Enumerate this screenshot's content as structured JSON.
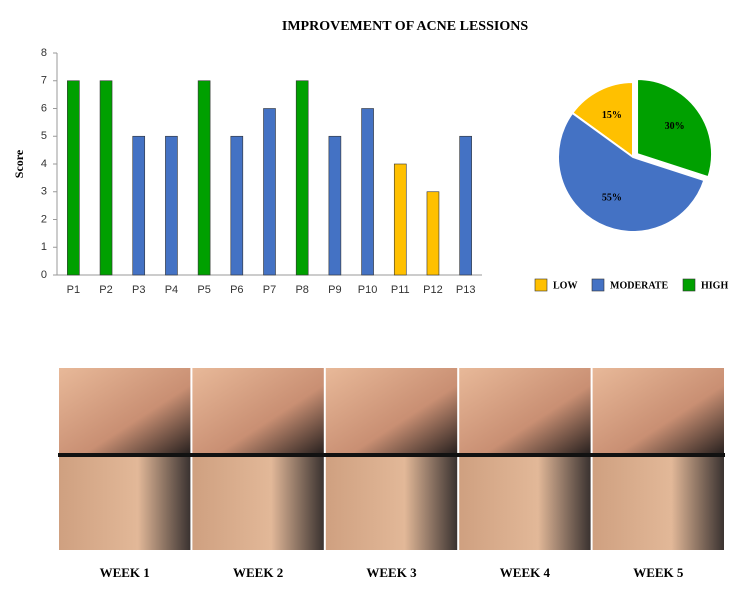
{
  "chart_data": [
    {
      "type": "bar",
      "title": "IMPROVEMENT OF ACNE LESSIONS",
      "y_label": "Score",
      "categories": [
        "P1",
        "P2",
        "P3",
        "P4",
        "P5",
        "P6",
        "P7",
        "P8",
        "P9",
        "P10",
        "P11",
        "P12",
        "P13"
      ],
      "series": [
        {
          "name": "LOW",
          "color": "#ffc000",
          "values": [
            null,
            null,
            null,
            null,
            null,
            null,
            null,
            null,
            null,
            null,
            4,
            3,
            null
          ]
        },
        {
          "name": "MODERATE",
          "color": "#4472c4",
          "values": [
            null,
            null,
            5,
            5,
            null,
            5,
            6,
            null,
            5,
            6,
            null,
            null,
            5
          ]
        },
        {
          "name": "HIGH",
          "color": "#00a000",
          "values": [
            7,
            7,
            null,
            null,
            7,
            null,
            null,
            7,
            null,
            null,
            null,
            null,
            null
          ]
        }
      ],
      "ylim": [
        0,
        8
      ],
      "yticks": [
        0,
        1,
        2,
        3,
        4,
        5,
        6,
        7,
        8
      ]
    },
    {
      "type": "pie",
      "values": [
        15,
        55,
        30
      ],
      "value_labels": [
        "15%",
        "55%",
        "30%"
      ],
      "colors": [
        "#ffc000",
        "#4472c4",
        "#00a000"
      ]
    }
  ],
  "photos": {
    "labels": [
      "WEEK 1",
      "WEEK 2",
      "WEEK 3",
      "WEEK 4",
      "WEEK 5"
    ]
  }
}
